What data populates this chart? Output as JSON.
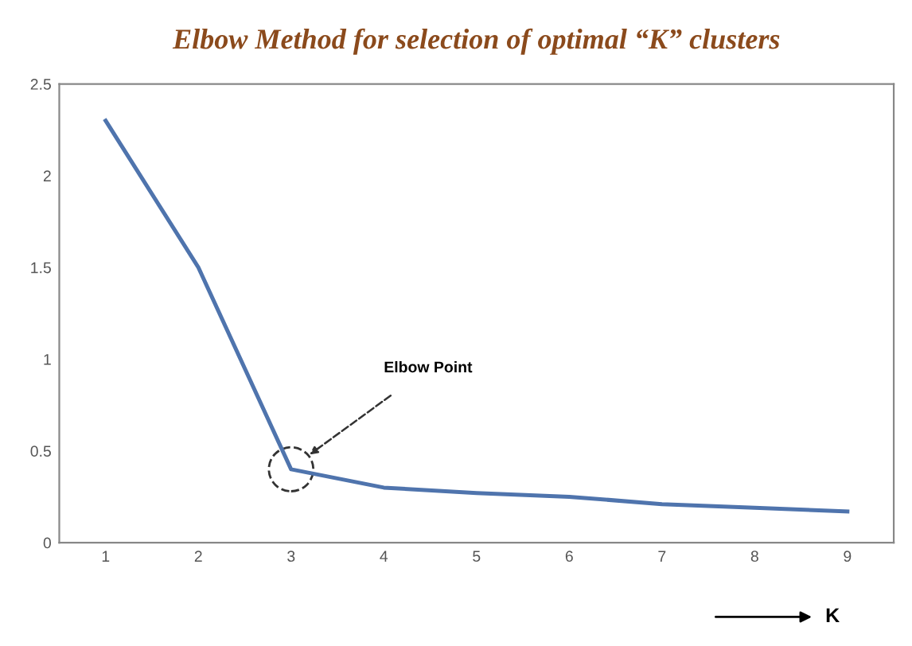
{
  "chart_data": {
    "type": "line",
    "title": "Elbow Method for selection of optimal “K” clusters",
    "categories": [
      "1",
      "2",
      "3",
      "4",
      "5",
      "6",
      "7",
      "8",
      "9"
    ],
    "series": [
      {
        "color": "#4f74ad",
        "values": [
          2.3,
          1.5,
          0.4,
          0.3,
          0.27,
          0.25,
          0.21,
          0.19,
          0.17
        ]
      }
    ],
    "xlabel": "K",
    "ylim": [
      0,
      2.5
    ],
    "yticks": [
      0,
      0.5,
      1,
      1.5,
      2,
      2.5
    ],
    "annotations": [
      "Elbow Point"
    ],
    "grid": false,
    "marker": "none",
    "line_style": "solid"
  }
}
